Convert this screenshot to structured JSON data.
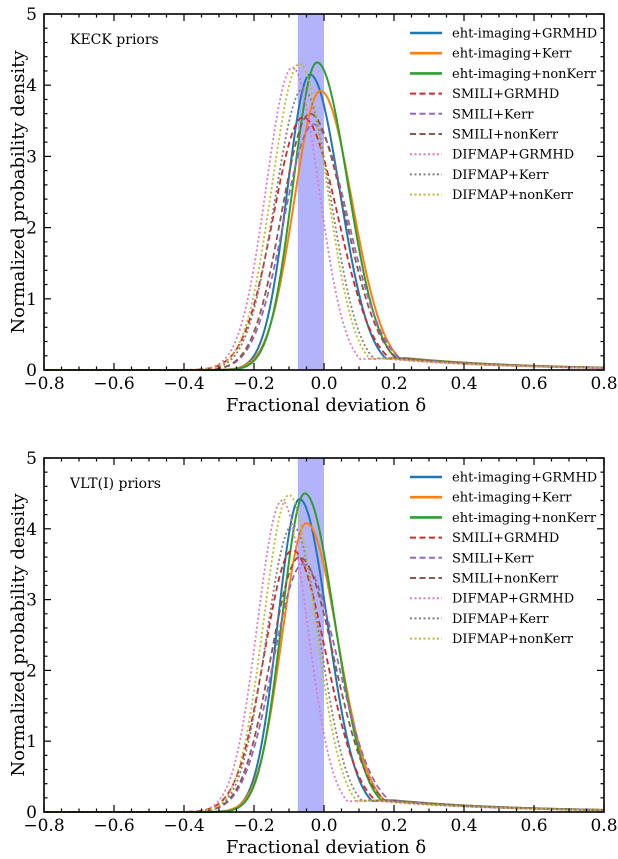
{
  "chart_data": [
    {
      "type": "line",
      "title": "KECK priors",
      "xlabel": "Fractional deviation δ",
      "ylabel": "Normalized probability density",
      "xlim": [
        -0.8,
        0.8
      ],
      "ylim": [
        0,
        5
      ],
      "x_ticks": [
        "−0.8",
        "−0.6",
        "−0.4",
        "−0.2",
        "0.0",
        "0.2",
        "0.4",
        "0.6",
        "0.8"
      ],
      "y_ticks": [
        "0",
        "1",
        "2",
        "3",
        "4",
        "5"
      ],
      "shaded_band": [
        -0.075,
        0.0
      ],
      "legend_position": "top-right",
      "series": [
        {
          "name": "eht-imaging+GRMHD",
          "color": "#1f77b4",
          "style": "solid",
          "peak_x": -0.04,
          "peak_y": 4.15,
          "sigma_left": 0.065,
          "sigma_right": 0.085
        },
        {
          "name": "eht-imaging+Kerr",
          "color": "#ff7f0e",
          "style": "solid",
          "peak_x": -0.01,
          "peak_y": 3.92,
          "sigma_left": 0.075,
          "sigma_right": 0.09
        },
        {
          "name": "eht-imaging+nonKerr",
          "color": "#2ca02c",
          "style": "solid",
          "peak_x": -0.02,
          "peak_y": 4.32,
          "sigma_left": 0.068,
          "sigma_right": 0.088
        },
        {
          "name": "SMILI+GRMHD",
          "color": "#d62728",
          "style": "dashed",
          "peak_x": -0.06,
          "peak_y": 3.55,
          "sigma_left": 0.085,
          "sigma_right": 0.1
        },
        {
          "name": "SMILI+Kerr",
          "color": "#9467bd",
          "style": "dashed",
          "peak_x": -0.03,
          "peak_y": 3.45,
          "sigma_left": 0.085,
          "sigma_right": 0.1
        },
        {
          "name": "SMILI+nonKerr",
          "color": "#8c564b",
          "style": "dashed",
          "peak_x": -0.04,
          "peak_y": 3.6,
          "sigma_left": 0.082,
          "sigma_right": 0.1
        },
        {
          "name": "DIFMAP+GRMHD",
          "color": "#e377c2",
          "style": "dotted",
          "peak_x": -0.09,
          "peak_y": 4.25,
          "sigma_left": 0.075,
          "sigma_right": 0.075
        },
        {
          "name": "DIFMAP+Kerr",
          "color": "#7f7f7f",
          "style": "dotted",
          "peak_x": -0.06,
          "peak_y": 3.95,
          "sigma_left": 0.08,
          "sigma_right": 0.08
        },
        {
          "name": "DIFMAP+nonKerr",
          "color": "#bcbd22",
          "style": "dotted",
          "peak_x": -0.07,
          "peak_y": 4.3,
          "sigma_left": 0.078,
          "sigma_right": 0.078
        }
      ]
    },
    {
      "type": "line",
      "title": "VLT(I) priors",
      "xlabel": "Fractional deviation δ",
      "ylabel": "Normalized probability density",
      "xlim": [
        -0.8,
        0.8
      ],
      "ylim": [
        0,
        5
      ],
      "x_ticks": [
        "−0.8",
        "−0.6",
        "−0.4",
        "−0.2",
        "0.0",
        "0.2",
        "0.4",
        "0.6",
        "0.8"
      ],
      "y_ticks": [
        "0",
        "1",
        "2",
        "3",
        "4",
        "5"
      ],
      "shaded_band": [
        -0.075,
        0.0
      ],
      "legend_position": "top-right",
      "series": [
        {
          "name": "eht-imaging+GRMHD",
          "color": "#1f77b4",
          "style": "solid",
          "peak_x": -0.07,
          "peak_y": 4.42,
          "sigma_left": 0.062,
          "sigma_right": 0.08
        },
        {
          "name": "eht-imaging+Kerr",
          "color": "#ff7f0e",
          "style": "solid",
          "peak_x": -0.05,
          "peak_y": 4.08,
          "sigma_left": 0.07,
          "sigma_right": 0.088
        },
        {
          "name": "eht-imaging+nonKerr",
          "color": "#2ca02c",
          "style": "solid",
          "peak_x": -0.055,
          "peak_y": 4.5,
          "sigma_left": 0.065,
          "sigma_right": 0.085
        },
        {
          "name": "SMILI+GRMHD",
          "color": "#d62728",
          "style": "dashed",
          "peak_x": -0.09,
          "peak_y": 3.7,
          "sigma_left": 0.08,
          "sigma_right": 0.095
        },
        {
          "name": "SMILI+Kerr",
          "color": "#9467bd",
          "style": "dashed",
          "peak_x": -0.06,
          "peak_y": 3.5,
          "sigma_left": 0.085,
          "sigma_right": 0.1
        },
        {
          "name": "SMILI+nonKerr",
          "color": "#8c564b",
          "style": "dashed",
          "peak_x": -0.07,
          "peak_y": 3.6,
          "sigma_left": 0.082,
          "sigma_right": 0.098
        },
        {
          "name": "DIFMAP+GRMHD",
          "color": "#e377c2",
          "style": "dotted",
          "peak_x": -0.12,
          "peak_y": 4.4,
          "sigma_left": 0.07,
          "sigma_right": 0.072
        },
        {
          "name": "DIFMAP+Kerr",
          "color": "#7f7f7f",
          "style": "dotted",
          "peak_x": -0.09,
          "peak_y": 4.05,
          "sigma_left": 0.075,
          "sigma_right": 0.078
        },
        {
          "name": "DIFMAP+nonKerr",
          "color": "#bcbd22",
          "style": "dotted",
          "peak_x": -0.1,
          "peak_y": 4.48,
          "sigma_left": 0.072,
          "sigma_right": 0.075
        }
      ]
    }
  ]
}
